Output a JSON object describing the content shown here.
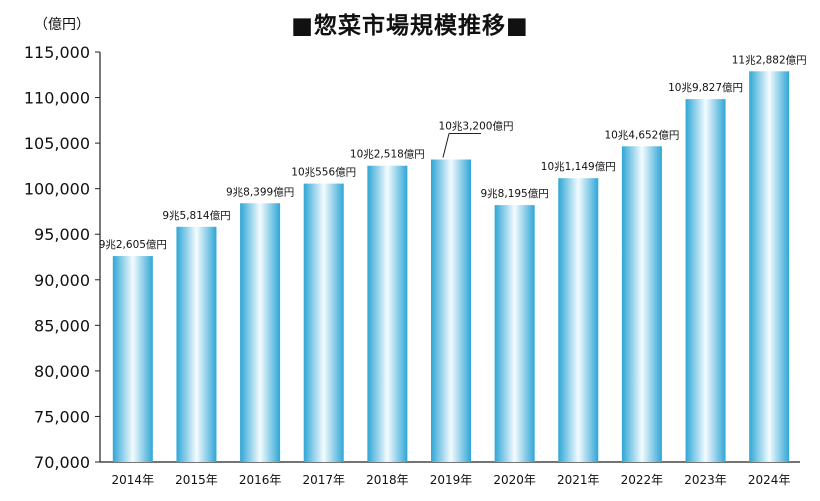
{
  "title": "■惣菜市場規模推移■",
  "unit_label": "（億円）",
  "chart_data": {
    "type": "bar",
    "title": "■惣菜市場規模推移■",
    "xlabel": "",
    "ylabel": "（億円）",
    "categories": [
      "2014年",
      "2015年",
      "2016年",
      "2017年",
      "2018年",
      "2019年",
      "2020年",
      "2021年",
      "2022年",
      "2023年",
      "2024年"
    ],
    "values": [
      92605,
      95814,
      98399,
      100556,
      102518,
      103200,
      98195,
      101149,
      104652,
      109827,
      112882
    ],
    "data_labels": [
      "9兆2,605億円",
      "9兆5,814億円",
      "9兆8,399億円",
      "10兆556億円",
      "10兆2,518億円",
      "10兆3,200億円",
      "9兆8,195億円",
      "10兆1,149億円",
      "10兆4,652億円",
      "10兆9,827億円",
      "11兆2,882億円"
    ],
    "ylim": [
      70000,
      115000
    ],
    "yticks": [
      70000,
      75000,
      80000,
      85000,
      90000,
      95000,
      100000,
      105000,
      110000,
      115000
    ],
    "ytick_labels": [
      "70,000",
      "75,000",
      "80,000",
      "85,000",
      "90,000",
      "95,000",
      "100,000",
      "105,000",
      "110,000",
      "115,000"
    ],
    "grid": false,
    "legend": "none",
    "colors": {
      "bar_edge": "#2fa6d6",
      "bar_center": "#ffffff",
      "axis": "#222222",
      "text": "#111111"
    }
  }
}
